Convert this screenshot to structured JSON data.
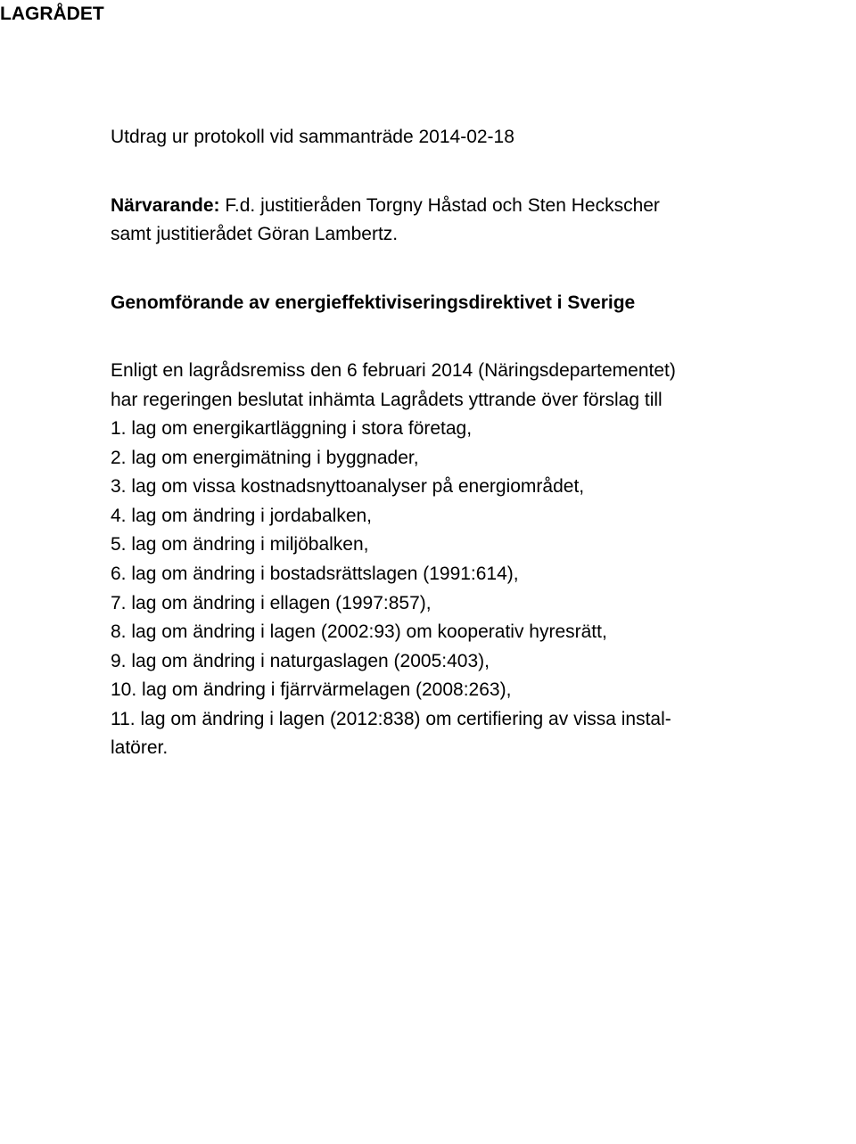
{
  "header": "LAGRÅDET",
  "protocol_line": "Utdrag ur protokoll vid sammanträde 2014-02-18",
  "present_label": "Närvarande:",
  "present_text_after_label": " F.d. justitieråden Torgny Håstad och Sten Heckscher",
  "present_line2": "samt justitierådet Göran Lambertz.",
  "title": "Genomförande av energieffektiviseringsdirektivet i Sverige",
  "intro_line1": "Enligt en lagrådsremiss den 6 februari 2014 (Näringsdepartementet)",
  "intro_line2": "har regeringen beslutat inhämta Lagrådets yttrande över förslag till",
  "laws": [
    "1. lag om energikartläggning i stora företag,",
    "2. lag om energimätning i byggnader,",
    "3. lag om vissa kostnadsnyttoanalyser på energiområdet,",
    "4. lag om ändring i jordabalken,",
    "5. lag om ändring i miljöbalken,",
    "6. lag om ändring i bostadsrättslagen (1991:614),",
    "7. lag om ändring i ellagen (1997:857),",
    "8. lag om ändring i lagen (2002:93) om kooperativ hyresrätt,",
    "9. lag om ändring i naturgaslagen (2005:403),",
    "10. lag om ändring i fjärrvärmelagen (2008:263),",
    "11. lag om ändring i lagen (2012:838) om certifiering av vissa instal-",
    "latörer."
  ]
}
